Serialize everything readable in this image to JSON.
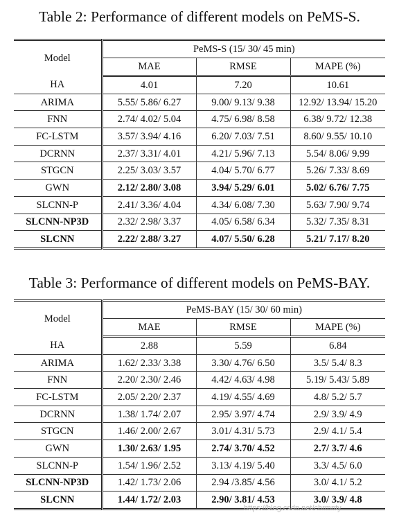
{
  "table2": {
    "caption": "Table 2: Performance of different models on PeMS-S.",
    "model_header": "Model",
    "group_header": "PeMS-S (15/ 30/ 45 min)",
    "columns": [
      "MAE",
      "RMSE",
      "MAPE (%)"
    ],
    "rows": [
      {
        "model": "HA",
        "mae": "4.01",
        "rmse": "7.20",
        "mape": "10.61"
      },
      {
        "model": "ARIMA",
        "mae": "5.55/ 5.86/ 6.27",
        "rmse": "9.00/ 9.13/ 9.38",
        "mape": "12.92/ 13.94/ 15.20"
      },
      {
        "model": "FNN",
        "mae": "2.74/ 4.02/ 5.04",
        "rmse": "4.75/ 6.98/ 8.58",
        "mape": "6.38/ 9.72/ 12.38"
      },
      {
        "model": "FC-LSTM",
        "mae": "3.57/ 3.94/ 4.16",
        "rmse": "6.20/ 7.03/ 7.51",
        "mape": "8.60/ 9.55/ 10.10"
      },
      {
        "model": "DCRNN",
        "mae": "2.37/ 3.31/ 4.01",
        "rmse": "4.21/ 5.96/ 7.13",
        "mape": "5.54/ 8.06/ 9.99"
      },
      {
        "model": "STGCN",
        "mae": "2.25/ 3.03/ 3.57",
        "rmse": "4.04/ 5.70/ 6.77",
        "mape": "5.26/ 7.33/ 8.69"
      },
      {
        "model": "GWN",
        "mae": "2.12/ 2.80/ 3.08",
        "rmse": "3.94/ 5.29/ 6.01",
        "mape": "5.02/ 6.76/ 7.75"
      },
      {
        "model": "SLCNN-P",
        "mae": "2.41/ 3.36/ 4.04",
        "rmse": "4.34/ 6.08/ 7.30",
        "mape": "5.63/ 7.90/ 9.74"
      },
      {
        "model": "SLCNN-NP3D",
        "mae": "2.32/ 2.98/ 3.37",
        "rmse": "4.05/ 6.58/ 6.34",
        "mape": "5.32/ 7.35/ 8.31"
      },
      {
        "model": "SLCNN",
        "mae": "2.22/ 2.88/ 3.27",
        "rmse": "4.07/ 5.50/ 6.28",
        "mape": "5.21/ 7.17/ 8.20"
      }
    ]
  },
  "table3": {
    "caption": "Table 3: Performance of different models on PeMS-BAY.",
    "model_header": "Model",
    "group_header": "PeMS-BAY (15/ 30/ 60 min)",
    "columns": [
      "MAE",
      "RMSE",
      "MAPE (%)"
    ],
    "rows": [
      {
        "model": "HA",
        "mae": "2.88",
        "rmse": "5.59",
        "mape": "6.84"
      },
      {
        "model": "ARIMA",
        "mae": "1.62/ 2.33/ 3.38",
        "rmse": "3.30/ 4.76/ 6.50",
        "mape": "3.5/ 5.4/ 8.3"
      },
      {
        "model": "FNN",
        "mae": "2.20/ 2.30/ 2.46",
        "rmse": "4.42/ 4.63/ 4.98",
        "mape": "5.19/ 5.43/ 5.89"
      },
      {
        "model": "FC-LSTM",
        "mae": "2.05/ 2.20/ 2.37",
        "rmse": "4.19/ 4.55/ 4.69",
        "mape": "4.8/ 5.2/ 5.7"
      },
      {
        "model": "DCRNN",
        "mae": "1.38/ 1.74/ 2.07",
        "rmse": "2.95/ 3.97/ 4.74",
        "mape": "2.9/ 3.9/ 4.9"
      },
      {
        "model": "STGCN",
        "mae": "1.46/ 2.00/ 2.67",
        "rmse": "3.01/ 4.31/ 5.73",
        "mape": "2.9/ 4.1/ 5.4"
      },
      {
        "model": "GWN",
        "mae": "1.30/ 2.63/ 1.95",
        "rmse": "2.74/ 3.70/ 4.52",
        "mape": "2.7/ 3.7/ 4.6"
      },
      {
        "model": "SLCNN-P",
        "mae": "1.54/ 1.96/ 2.52",
        "rmse": "3.13/ 4.19/ 5.40",
        "mape": "3.3/ 4.5/ 6.0"
      },
      {
        "model": "SLCNN-NP3D",
        "mae": "1.42/ 1.73/ 2.06",
        "rmse": "2.94 /3.85/ 4.56",
        "mape": "3.0/ 4.1/ 5.2"
      },
      {
        "model": "SLCNN",
        "mae": "1.44/ 1.72/ 2.03",
        "rmse": "2.90/ 3.81/ 4.53",
        "mape": "3.0/ 3.9/ 4.8"
      }
    ]
  },
  "watermark": "https://blog.csdn.net/chrmnty"
}
